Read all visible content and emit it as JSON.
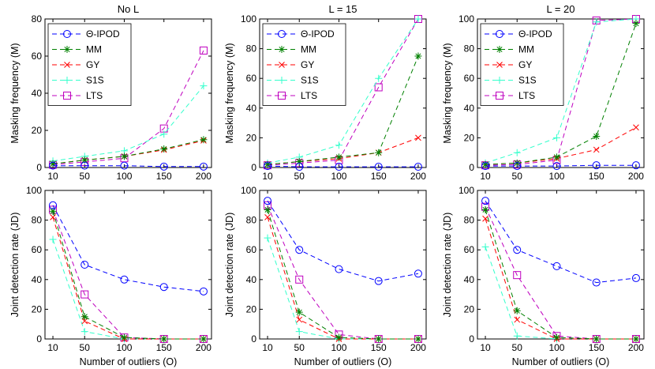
{
  "figure": {
    "series_styles": [
      {
        "name": "Θ-IPOD",
        "color": "#0000ff",
        "marker": "circle"
      },
      {
        "name": "MM",
        "color": "#008000",
        "marker": "star"
      },
      {
        "name": "GY",
        "color": "#ff0000",
        "marker": "asterisk"
      },
      {
        "name": "S1S",
        "color": "#33ffcc",
        "marker": "plus"
      },
      {
        "name": "LTS",
        "color": "#bf00bf",
        "marker": "square"
      }
    ]
  },
  "chart_data": [
    {
      "type": "line",
      "title": "No L",
      "xlabel": "",
      "ylabel": "Masking frequency (M)",
      "x": [
        10,
        50,
        100,
        150,
        200
      ],
      "xticks": [
        "10",
        "50",
        "100",
        "150",
        "200"
      ],
      "ylim": [
        0,
        80
      ],
      "yticks": [
        "0",
        "20",
        "40",
        "60",
        "80"
      ],
      "legend": "top-left",
      "series": [
        {
          "name": "Θ-IPOD",
          "values": [
            1,
            1,
            1,
            0.5,
            0.5
          ]
        },
        {
          "name": "MM",
          "values": [
            2,
            4,
            6,
            10,
            15
          ]
        },
        {
          "name": "GY",
          "values": [
            2,
            4,
            6,
            9.5,
            14.5
          ]
        },
        {
          "name": "S1S",
          "values": [
            3.5,
            6,
            9,
            18,
            44
          ]
        },
        {
          "name": "LTS",
          "values": [
            1.5,
            3,
            5,
            21,
            63
          ]
        }
      ]
    },
    {
      "type": "line",
      "title": "L = 15",
      "xlabel": "",
      "ylabel": "Masking frequency (M)",
      "x": [
        10,
        50,
        100,
        150,
        200
      ],
      "xticks": [
        "10",
        "50",
        "100",
        "150",
        "200"
      ],
      "ylim": [
        0,
        100
      ],
      "yticks": [
        "0",
        "20",
        "40",
        "60",
        "80",
        "100"
      ],
      "legend": "top-left",
      "series": [
        {
          "name": "Θ-IPOD",
          "values": [
            1,
            0.5,
            0.5,
            0.5,
            0.5
          ]
        },
        {
          "name": "MM",
          "values": [
            2,
            4,
            7,
            10,
            75
          ]
        },
        {
          "name": "GY",
          "values": [
            2,
            4,
            6,
            10,
            20
          ]
        },
        {
          "name": "S1S",
          "values": [
            3,
            7,
            15,
            60,
            100
          ]
        },
        {
          "name": "LTS",
          "values": [
            1.5,
            3,
            5,
            54,
            100
          ]
        }
      ]
    },
    {
      "type": "line",
      "title": "L = 20",
      "xlabel": "",
      "ylabel": "Masking frequency (M)",
      "x": [
        10,
        50,
        100,
        150,
        200
      ],
      "xticks": [
        "10",
        "50",
        "100",
        "150",
        "200"
      ],
      "ylim": [
        0,
        100
      ],
      "yticks": [
        "0",
        "20",
        "40",
        "60",
        "80",
        "100"
      ],
      "legend": "top-left",
      "series": [
        {
          "name": "Θ-IPOD",
          "values": [
            1,
            1,
            1,
            1.5,
            1.5
          ]
        },
        {
          "name": "MM",
          "values": [
            2,
            3,
            7,
            21,
            97
          ]
        },
        {
          "name": "GY",
          "values": [
            2,
            3,
            6,
            12,
            27
          ]
        },
        {
          "name": "S1S",
          "values": [
            3,
            10,
            20,
            98,
            100
          ]
        },
        {
          "name": "LTS",
          "values": [
            1.5,
            2,
            5,
            99,
            100
          ]
        }
      ]
    },
    {
      "type": "line",
      "title": "",
      "xlabel": "Number of outliers (O)",
      "ylabel": "Joint detection rate (JD)",
      "x": [
        10,
        50,
        100,
        150,
        200
      ],
      "xticks": [
        "10",
        "50",
        "100",
        "150",
        "200"
      ],
      "ylim": [
        0,
        100
      ],
      "yticks": [
        "0",
        "20",
        "40",
        "60",
        "80",
        "100"
      ],
      "legend": "none",
      "series": [
        {
          "name": "Θ-IPOD",
          "values": [
            90,
            50,
            40,
            35,
            32
          ]
        },
        {
          "name": "MM",
          "values": [
            86,
            15,
            1,
            0,
            0
          ]
        },
        {
          "name": "GY",
          "values": [
            82,
            12,
            0,
            0,
            0
          ]
        },
        {
          "name": "S1S",
          "values": [
            67,
            5,
            0,
            0,
            0
          ]
        },
        {
          "name": "LTS",
          "values": [
            87,
            30,
            1,
            0,
            0
          ]
        }
      ]
    },
    {
      "type": "line",
      "title": "",
      "xlabel": "Number of outliers (O)",
      "ylabel": "Joint detection rate (JD)",
      "x": [
        10,
        50,
        100,
        150,
        200
      ],
      "xticks": [
        "10",
        "50",
        "100",
        "150",
        "200"
      ],
      "ylim": [
        0,
        100
      ],
      "yticks": [
        "0",
        "20",
        "40",
        "60",
        "80",
        "100"
      ],
      "legend": "none",
      "series": [
        {
          "name": "Θ-IPOD",
          "values": [
            93,
            60,
            47,
            39,
            44
          ]
        },
        {
          "name": "MM",
          "values": [
            87,
            18,
            1,
            0,
            0
          ]
        },
        {
          "name": "GY",
          "values": [
            82,
            13,
            0,
            0,
            0
          ]
        },
        {
          "name": "S1S",
          "values": [
            68,
            5,
            0,
            0,
            0
          ]
        },
        {
          "name": "LTS",
          "values": [
            90,
            40,
            3,
            0,
            0
          ]
        }
      ]
    },
    {
      "type": "line",
      "title": "",
      "xlabel": "Number of outliers (O)",
      "ylabel": "Joint detection rate (JD)",
      "x": [
        10,
        50,
        100,
        150,
        200
      ],
      "xticks": [
        "10",
        "50",
        "100",
        "150",
        "200"
      ],
      "ylim": [
        0,
        100
      ],
      "yticks": [
        "0",
        "20",
        "40",
        "60",
        "80",
        "100"
      ],
      "legend": "none",
      "series": [
        {
          "name": "Θ-IPOD",
          "values": [
            93,
            60,
            49,
            38,
            41
          ]
        },
        {
          "name": "MM",
          "values": [
            87,
            19,
            1,
            0,
            0
          ]
        },
        {
          "name": "GY",
          "values": [
            81,
            13,
            0,
            0,
            0
          ]
        },
        {
          "name": "S1S",
          "values": [
            62,
            2,
            0,
            0,
            0
          ]
        },
        {
          "name": "LTS",
          "values": [
            89,
            43,
            2,
            0,
            0
          ]
        }
      ]
    }
  ]
}
